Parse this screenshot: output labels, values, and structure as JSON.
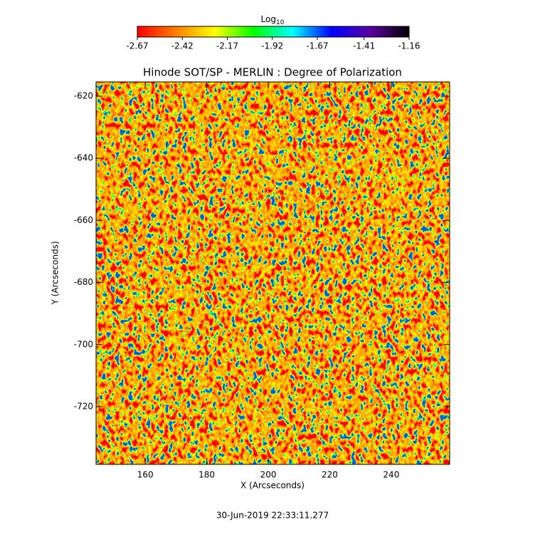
{
  "chart_data": {
    "type": "heatmap",
    "title": "Hinode SOT/SP - MERLIN : Degree of Polarization",
    "x_label": "X (Arcseconds)",
    "y_label": "Y (Arcseconds)",
    "xlim": [
      144,
      259
    ],
    "xticks": [
      160,
      180,
      200,
      220,
      240
    ],
    "ylim": [
      -738.6,
      -615.4
    ],
    "yticks": [
      -620,
      -640,
      -660,
      -680,
      -700,
      -720
    ],
    "colorbar": {
      "label": "Log",
      "label_subscript": "10",
      "lim": [
        -2.67,
        -1.16
      ],
      "ticks": [
        -2.67,
        -2.42,
        -2.17,
        -1.92,
        -1.67,
        -1.41,
        -1.16
      ],
      "colors": [
        "#ff0000",
        "#ff8000",
        "#ffff00",
        "#00ff00",
        "#00ffff",
        "#0000ff",
        "#5a00a0",
        "#000000"
      ]
    },
    "footer": "30-Jun-2019 22:33:11.277"
  }
}
